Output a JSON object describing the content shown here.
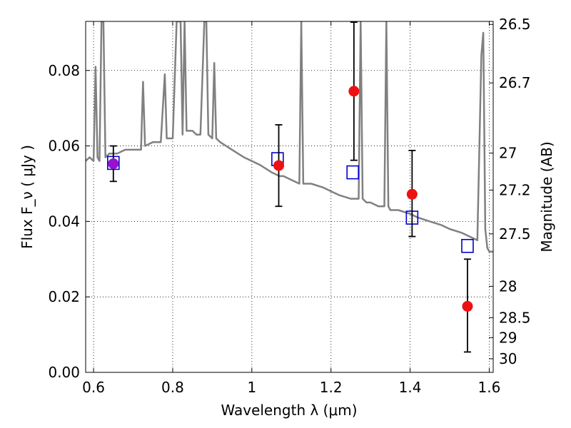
{
  "chart_data": {
    "type": "scatter",
    "xlabel": "Wavelength  λ (μm)",
    "ylabel_left": "Flux  F_ν  ( μJy )",
    "ylabel_right": "Magnitude (AB)",
    "xlim": [
      0.58,
      1.61
    ],
    "ylim": [
      0.0,
      0.093
    ],
    "grid": true,
    "x_ticks": [
      0.6,
      0.8,
      1.0,
      1.2,
      1.4,
      1.6
    ],
    "x_tick_labels": [
      "0.6",
      "0.8",
      "1",
      "1.2",
      "1.4",
      "1.6"
    ],
    "y_ticks": [
      0.0,
      0.02,
      0.04,
      0.06,
      0.08
    ],
    "y_tick_labels": [
      "0.00",
      "0.02",
      "0.04",
      "0.06",
      "0.08"
    ],
    "right_ticks": [
      {
        "label": "26.5",
        "flux": 0.0922
      },
      {
        "label": "26.7",
        "flux": 0.0767
      },
      {
        "label": "27",
        "flux": 0.0581
      },
      {
        "label": "27.2",
        "flux": 0.0483
      },
      {
        "label": "27.5",
        "flux": 0.0367
      },
      {
        "label": "28",
        "flux": 0.0228
      },
      {
        "label": "28.5",
        "flux": 0.0145
      },
      {
        "label": "29",
        "flux": 0.0092
      },
      {
        "label": "30",
        "flux": 0.0036
      }
    ],
    "series": [
      {
        "kind": "line",
        "color": "#808080",
        "x": [
          0.58,
          0.59,
          0.6,
          0.605,
          0.61,
          0.615,
          0.62,
          0.625,
          0.63,
          0.64,
          0.66,
          0.68,
          0.7,
          0.72,
          0.725,
          0.73,
          0.75,
          0.77,
          0.78,
          0.785,
          0.79,
          0.8,
          0.81,
          0.82,
          0.825,
          0.83,
          0.835,
          0.84,
          0.85,
          0.86,
          0.87,
          0.88,
          0.885,
          0.89,
          0.9,
          0.905,
          0.91,
          0.92,
          0.95,
          0.98,
          1.0,
          1.02,
          1.05,
          1.07,
          1.08,
          1.1,
          1.12,
          1.125,
          1.13,
          1.15,
          1.18,
          1.2,
          1.22,
          1.25,
          1.27,
          1.275,
          1.28,
          1.29,
          1.3,
          1.32,
          1.335,
          1.34,
          1.345,
          1.35,
          1.37,
          1.4,
          1.42,
          1.45,
          1.48,
          1.5,
          1.53,
          1.55,
          1.57,
          1.58,
          1.585,
          1.59,
          1.595,
          1.6,
          1.61
        ],
        "y": [
          0.056,
          0.057,
          0.056,
          0.081,
          0.057,
          0.056,
          0.093,
          0.093,
          0.057,
          0.058,
          0.058,
          0.059,
          0.059,
          0.059,
          0.077,
          0.06,
          0.061,
          0.061,
          0.079,
          0.062,
          0.062,
          0.062,
          0.093,
          0.093,
          0.063,
          0.093,
          0.064,
          0.064,
          0.064,
          0.063,
          0.063,
          0.093,
          0.093,
          0.063,
          0.062,
          0.082,
          0.062,
          0.061,
          0.059,
          0.057,
          0.056,
          0.055,
          0.053,
          0.052,
          0.052,
          0.051,
          0.05,
          0.093,
          0.05,
          0.05,
          0.049,
          0.048,
          0.047,
          0.046,
          0.046,
          0.093,
          0.046,
          0.045,
          0.045,
          0.044,
          0.044,
          0.093,
          0.044,
          0.043,
          0.043,
          0.042,
          0.041,
          0.04,
          0.039,
          0.038,
          0.037,
          0.036,
          0.035,
          0.084,
          0.09,
          0.038,
          0.033,
          0.032,
          0.032
        ]
      },
      {
        "kind": "model-points",
        "marker": "open-square",
        "color": "#0000cc",
        "x": [
          0.65,
          1.065,
          1.255,
          1.405,
          1.545
        ],
        "y": [
          0.0555,
          0.0565,
          0.053,
          0.041,
          0.0335
        ]
      },
      {
        "kind": "observed-points",
        "marker": "filled-circle",
        "color": "#ee1111",
        "x": [
          0.65,
          1.068,
          1.258,
          1.405,
          1.545
        ],
        "y": [
          0.0553,
          0.0548,
          0.0745,
          0.0472,
          0.0175
        ],
        "yerr_low": [
          0.0047,
          0.0108,
          0.0183,
          0.0112,
          0.0121
        ],
        "yerr_high": [
          0.0047,
          0.0108,
          0.0183,
          0.0116,
          0.0125
        ]
      }
    ]
  }
}
